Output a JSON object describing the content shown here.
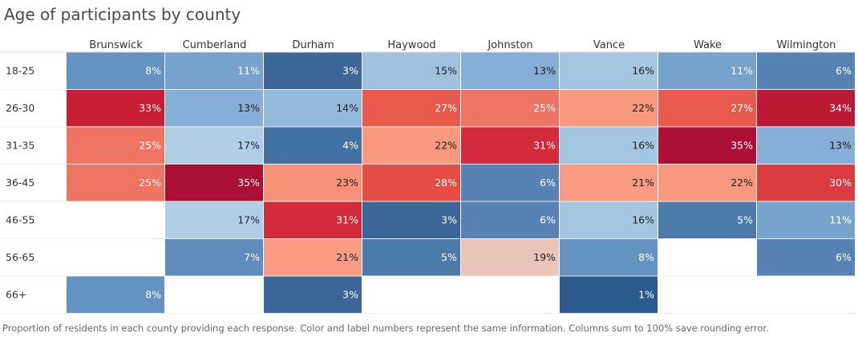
{
  "title": "Age of participants by county",
  "caption": "Proportion of residents in each county providing each response. Color and label numbers represent the same information. Columns sum to 100% save  rounding error.",
  "chart_data": {
    "type": "heatmap",
    "title": "Age of participants by county",
    "columns": [
      "Brunswick",
      "Cumberland",
      "Durham",
      "Haywood",
      "Johnston",
      "Vance",
      "Wake",
      "Wilmington"
    ],
    "rows": [
      "18-25",
      "26-30",
      "31-35",
      "36-45",
      "46-55",
      "56-65",
      "66+"
    ],
    "values": [
      [
        8,
        11,
        3,
        15,
        13,
        16,
        11,
        6
      ],
      [
        33,
        13,
        14,
        27,
        25,
        22,
        27,
        34
      ],
      [
        25,
        17,
        4,
        22,
        31,
        16,
        35,
        13
      ],
      [
        25,
        35,
        23,
        28,
        6,
        21,
        22,
        30
      ],
      [
        null,
        17,
        31,
        3,
        6,
        16,
        5,
        11
      ],
      [
        null,
        7,
        21,
        5,
        19,
        8,
        null,
        6
      ],
      [
        8,
        null,
        3,
        null,
        null,
        1,
        null,
        null
      ]
    ],
    "unit": "%",
    "color_scale": "diverging blue-red",
    "colors": {
      "1": "#2d5a8c",
      "3": "#3b6697",
      "4": "#4471a3",
      "5": "#4c7aaa",
      "6": "#5683b4",
      "7": "#5f8cbb",
      "8": "#6492c1",
      "11": "#77a2cc",
      "13": "#86aed6",
      "14": "#93b9dc",
      "15": "#9fc2e0",
      "16": "#a3c6e3",
      "17": "#b0cfe6",
      "19": "#eac3b9",
      "21": "#f79b85",
      "22": "#f8987e",
      "23": "#f89178",
      "25": "#f07464",
      "27": "#ea5a4c",
      "28": "#e54c44",
      "30": "#db3c42",
      "31": "#d22c3c",
      "33": "#c81e35",
      "34": "#bb1a35",
      "35": "#ab0f33"
    }
  }
}
